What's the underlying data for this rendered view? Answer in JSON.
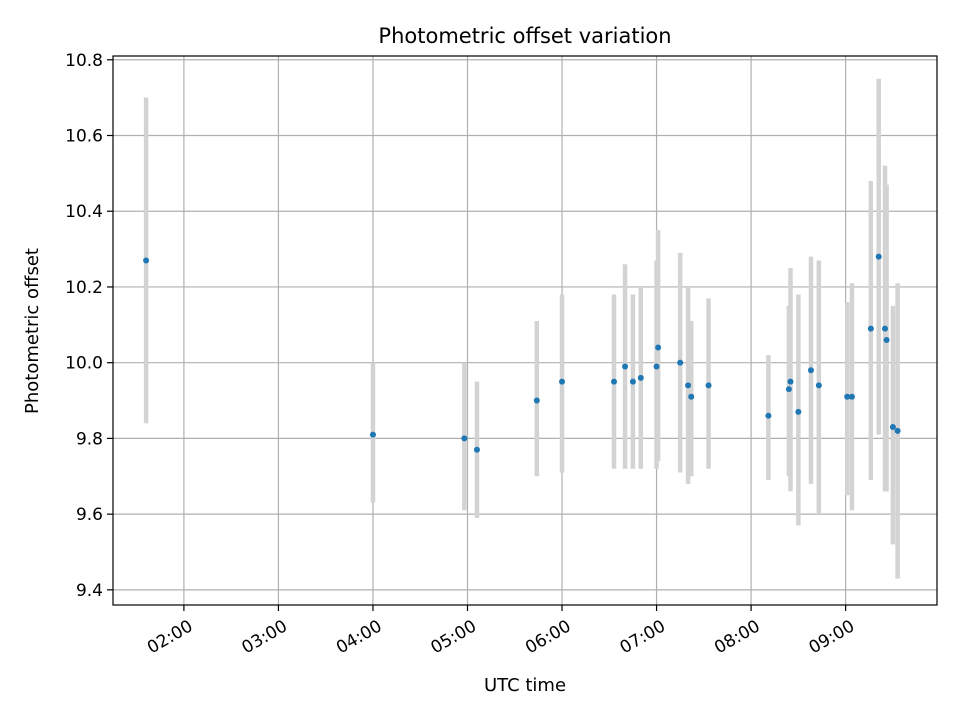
{
  "chart_data": {
    "type": "scatter",
    "title": "Photometric offset variation",
    "xlabel": "UTC time",
    "ylabel": "Photometric offset",
    "xlim": [
      "01:15",
      "09:58"
    ],
    "ylim": [
      9.36,
      10.81
    ],
    "grid": true,
    "x_ticks": [
      "02:00",
      "03:00",
      "04:00",
      "05:00",
      "06:00",
      "07:00",
      "08:00",
      "09:00"
    ],
    "y_ticks": [
      "9.4",
      "9.6",
      "9.8",
      "10.0",
      "10.2",
      "10.4",
      "10.6",
      "10.8"
    ],
    "colors": {
      "point": "#1f77b4",
      "errorbar": "#d3d3d3",
      "grid": "#b0b0b0"
    },
    "series": [
      {
        "points": [
          {
            "x": "01:36",
            "y": 10.27,
            "lo": 9.84,
            "hi": 10.7
          },
          {
            "x": "04:00",
            "y": 9.81,
            "lo": 9.63,
            "hi": 10.0
          },
          {
            "x": "04:58",
            "y": 9.8,
            "lo": 9.61,
            "hi": 10.0
          },
          {
            "x": "05:06",
            "y": 9.77,
            "lo": 9.59,
            "hi": 9.95
          },
          {
            "x": "05:44",
            "y": 9.9,
            "lo": 9.7,
            "hi": 10.11
          },
          {
            "x": "06:00",
            "y": 9.95,
            "lo": 9.71,
            "hi": 10.18
          },
          {
            "x": "06:33",
            "y": 9.95,
            "lo": 9.72,
            "hi": 10.18
          },
          {
            "x": "06:40",
            "y": 9.99,
            "lo": 9.72,
            "hi": 10.26
          },
          {
            "x": "06:45",
            "y": 9.95,
            "lo": 9.72,
            "hi": 10.18
          },
          {
            "x": "06:50",
            "y": 9.96,
            "lo": 9.72,
            "hi": 10.2
          },
          {
            "x": "07:00",
            "y": 9.99,
            "lo": 9.72,
            "hi": 10.27
          },
          {
            "x": "07:01",
            "y": 10.04,
            "lo": 9.74,
            "hi": 10.35
          },
          {
            "x": "07:15",
            "y": 10.0,
            "lo": 9.71,
            "hi": 10.29
          },
          {
            "x": "07:20",
            "y": 9.94,
            "lo": 9.68,
            "hi": 10.2
          },
          {
            "x": "07:22",
            "y": 9.91,
            "lo": 9.7,
            "hi": 10.11
          },
          {
            "x": "07:33",
            "y": 9.94,
            "lo": 9.72,
            "hi": 10.17
          },
          {
            "x": "08:11",
            "y": 9.86,
            "lo": 9.69,
            "hi": 10.02
          },
          {
            "x": "08:24",
            "y": 9.93,
            "lo": 9.7,
            "hi": 10.15
          },
          {
            "x": "08:25",
            "y": 9.95,
            "lo": 9.66,
            "hi": 10.25
          },
          {
            "x": "08:30",
            "y": 9.87,
            "lo": 9.57,
            "hi": 10.18
          },
          {
            "x": "08:38",
            "y": 9.98,
            "lo": 9.68,
            "hi": 10.28
          },
          {
            "x": "08:43",
            "y": 9.94,
            "lo": 9.6,
            "hi": 10.27
          },
          {
            "x": "09:01",
            "y": 9.91,
            "lo": 9.65,
            "hi": 10.16
          },
          {
            "x": "09:04",
            "y": 9.91,
            "lo": 9.61,
            "hi": 10.21
          },
          {
            "x": "09:16",
            "y": 10.09,
            "lo": 9.69,
            "hi": 10.48
          },
          {
            "x": "09:21",
            "y": 10.28,
            "lo": 9.81,
            "hi": 10.75
          },
          {
            "x": "09:25",
            "y": 10.09,
            "lo": 9.66,
            "hi": 10.52
          },
          {
            "x": "09:26",
            "y": 10.06,
            "lo": 9.66,
            "hi": 10.47
          },
          {
            "x": "09:30",
            "y": 9.83,
            "lo": 9.52,
            "hi": 10.15
          },
          {
            "x": "09:33",
            "y": 9.82,
            "lo": 9.43,
            "hi": 10.21
          }
        ]
      }
    ]
  }
}
